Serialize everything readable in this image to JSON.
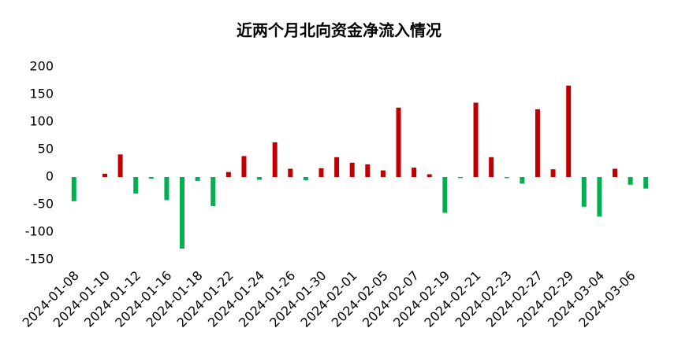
{
  "chart_data": {
    "type": "bar",
    "title": "近两个月北向资金净流入情况",
    "categories": [
      "2024-01-08",
      null,
      "2024-01-10",
      null,
      "2024-01-12",
      null,
      "2024-01-16",
      null,
      "2024-01-18",
      null,
      "2024-01-22",
      null,
      "2024-01-24",
      null,
      "2024-01-26",
      null,
      "2024-01-30",
      null,
      "2024-02-01",
      null,
      "2024-02-05",
      null,
      "2024-02-07",
      null,
      "2024-02-19",
      null,
      "2024-02-21",
      null,
      "2024-02-23",
      null,
      "2024-02-27",
      null,
      "2024-02-29",
      null,
      "2024-03-04",
      null,
      "2024-03-06",
      null
    ],
    "values": [
      -44,
      0,
      6,
      41,
      -30,
      -3,
      -42,
      -130,
      -7,
      -53,
      9,
      38,
      -5,
      63,
      15,
      -6,
      16,
      36,
      26,
      23,
      12,
      126,
      17,
      5,
      -65,
      -2,
      135,
      36,
      -2,
      -12,
      123,
      14,
      166,
      -54,
      -72,
      15,
      -14,
      -21
    ],
    "positive_color": "#c00000",
    "negative_color": "#00b050",
    "ylim": [
      -150,
      200
    ],
    "yticks": [
      -150,
      -100,
      -50,
      0,
      50,
      100,
      150,
      200
    ],
    "grid": false
  }
}
